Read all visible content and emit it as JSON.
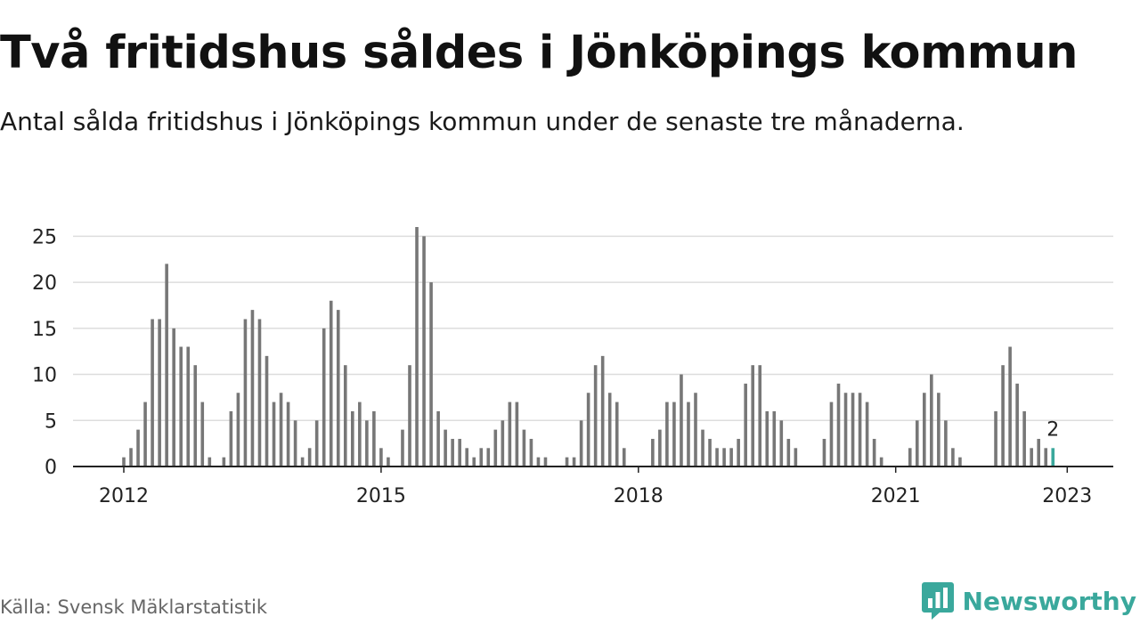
{
  "title": "Två fritidshus såldes i Jönköpings kommun",
  "subtitle": "Antal sålda fritidshus i Jönköpings kommun under de senaste tre månaderna.",
  "source": "Källa: Svensk Mäklarstatistik",
  "brand": {
    "name": "Newsworthy",
    "color": "#3aa89c",
    "icon": "newsworthy-logo-icon"
  },
  "chart_data": {
    "type": "bar",
    "title": "",
    "xlabel": "",
    "ylabel": "",
    "ylim": [
      0,
      26
    ],
    "yticks": [
      0,
      5,
      10,
      15,
      20,
      25
    ],
    "grid": true,
    "x_start": "2012-01",
    "x_end": "2023-01",
    "x_tick_labels": [
      {
        "label": "2012",
        "date": "2012-01"
      },
      {
        "label": "2015",
        "date": "2015-01"
      },
      {
        "label": "2018",
        "date": "2018-01"
      },
      {
        "label": "2021",
        "date": "2021-01"
      },
      {
        "label": "2023",
        "date": "2023-01"
      }
    ],
    "bar_color": "#777777",
    "highlight_color": "#3aa89c",
    "highlight_last": true,
    "last_value_label": "2",
    "values": [
      1,
      2,
      4,
      7,
      16,
      16,
      22,
      15,
      13,
      13,
      11,
      7,
      1,
      0,
      1,
      6,
      8,
      16,
      17,
      16,
      12,
      7,
      8,
      7,
      5,
      1,
      2,
      5,
      15,
      18,
      17,
      11,
      6,
      7,
      5,
      6,
      2,
      1,
      0,
      4,
      11,
      26,
      25,
      20,
      6,
      4,
      3,
      3,
      2,
      1,
      2,
      2,
      4,
      5,
      7,
      7,
      4,
      3,
      1,
      1,
      0,
      0,
      1,
      1,
      5,
      8,
      11,
      12,
      8,
      7,
      2,
      0,
      0,
      0,
      3,
      4,
      7,
      7,
      10,
      7,
      8,
      4,
      3,
      2,
      2,
      2,
      3,
      9,
      11,
      11,
      6,
      6,
      5,
      3,
      2,
      0,
      0,
      0,
      3,
      7,
      9,
      8,
      8,
      8,
      7,
      3,
      1,
      0,
      0,
      0,
      2,
      5,
      8,
      10,
      8,
      5,
      2,
      1,
      0,
      0,
      0,
      0,
      6,
      11,
      13,
      9,
      6,
      2,
      3,
      2,
      2
    ]
  }
}
